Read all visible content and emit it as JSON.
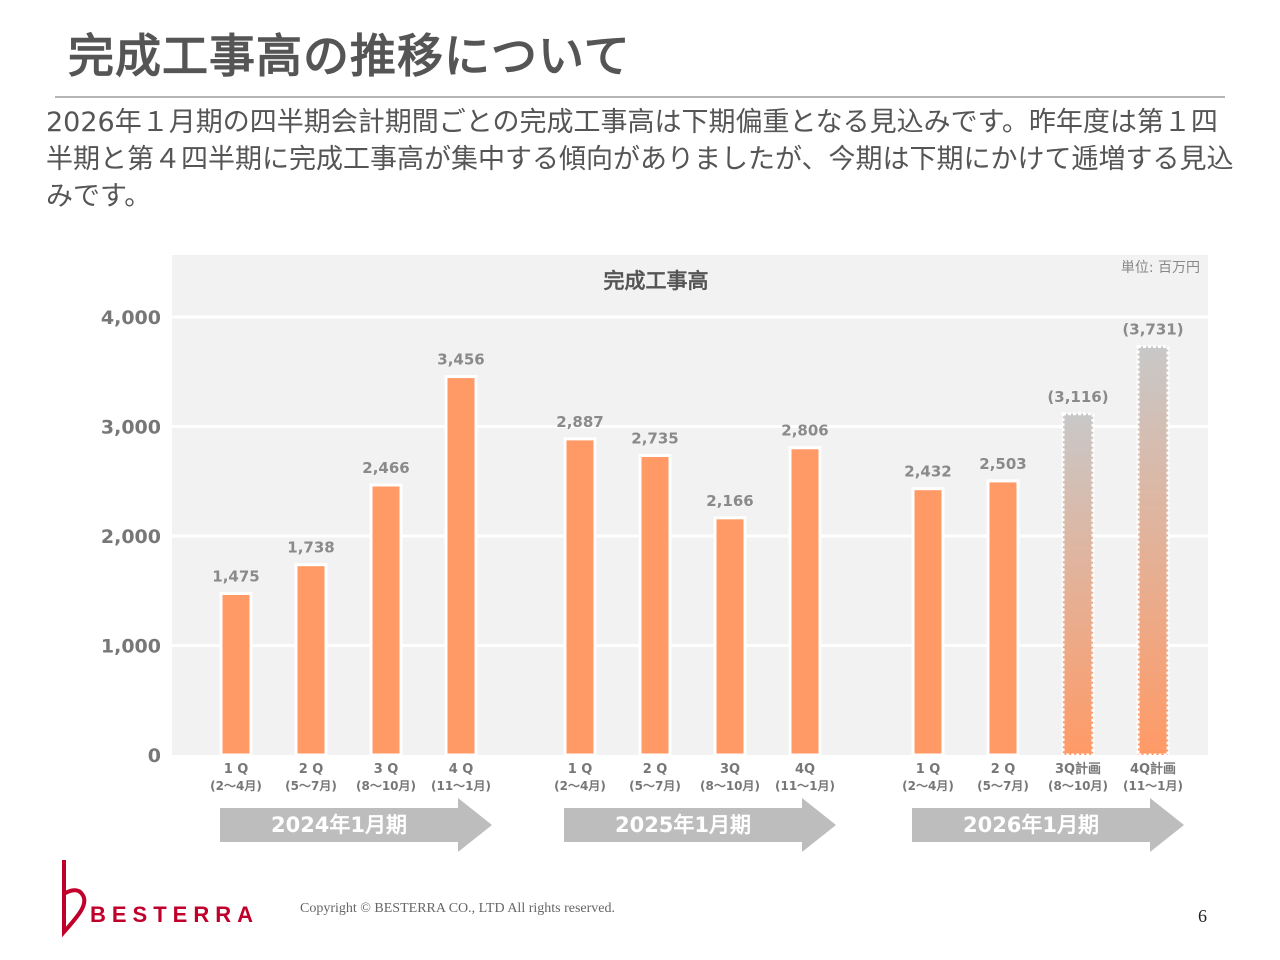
{
  "header": {
    "title": "完成工事高の推移について",
    "lead": "2026年１月期の四半期会計期間ごとの完成工事高は下期偏重となる見込みです。昨年度は第１四半期と第４四半期に完成工事高が集中する傾向がありましたが、今期は下期にかけて逓増する見込みです。"
  },
  "chart_data": {
    "type": "bar",
    "title": "完成工事高",
    "unit_label": "単位: 百万円",
    "ylim": [
      0,
      4000
    ],
    "y_ticks": [
      "0",
      "1,000",
      "2,000",
      "3,000",
      "4,000"
    ],
    "grid": true,
    "groups": [
      {
        "name": "2024年1月期",
        "bars": [
          {
            "q": "1 Q",
            "period": "(2〜4月)",
            "value": 1475,
            "label": "1,475",
            "planned": false
          },
          {
            "q": "2 Q",
            "period": "(5〜7月)",
            "value": 1738,
            "label": "1,738",
            "planned": false
          },
          {
            "q": "3 Q",
            "period": "(8〜10月)",
            "value": 2466,
            "label": "2,466",
            "planned": false
          },
          {
            "q": "4 Q",
            "period": "(11〜1月)",
            "value": 3456,
            "label": "3,456",
            "planned": false
          }
        ]
      },
      {
        "name": "2025年1月期",
        "bars": [
          {
            "q": "1 Q",
            "period": "(2〜4月)",
            "value": 2887,
            "label": "2,887",
            "planned": false
          },
          {
            "q": "2 Q",
            "period": "(5〜7月)",
            "value": 2735,
            "label": "2,735",
            "planned": false
          },
          {
            "q": "3Q",
            "period": "(8〜10月)",
            "value": 2166,
            "label": "2,166",
            "planned": false
          },
          {
            "q": "4Q",
            "period": "(11〜1月)",
            "value": 2806,
            "label": "2,806",
            "planned": false
          }
        ]
      },
      {
        "name": "2026年1月期",
        "bars": [
          {
            "q": "1 Q",
            "period": "(2〜4月)",
            "value": 2432,
            "label": "2,432",
            "planned": false
          },
          {
            "q": "2 Q",
            "period": "(5〜7月)",
            "value": 2503,
            "label": "2,503",
            "planned": false
          },
          {
            "q": "3Q計画",
            "period": "(8〜10月)",
            "value": 3116,
            "label": "(3,116)",
            "planned": true
          },
          {
            "q": "4Q計画",
            "period": "(11〜1月)",
            "value": 3731,
            "label": "(3,731)",
            "planned": true
          }
        ]
      }
    ],
    "colors": {
      "bar": "#ff9a66",
      "plan_top": "#c8c8c8",
      "plan_bottom": "#ff9a66",
      "plot_bg": "#f2f2f2",
      "arrow": "#bdbdbd",
      "value_label": "#8a8a8a",
      "axis_label": "#777777"
    }
  },
  "footer": {
    "logo_text": "BESTERRA",
    "copyright": "Copyright © BESTERRA CO., LTD All rights reserved.",
    "page_number": "6"
  }
}
